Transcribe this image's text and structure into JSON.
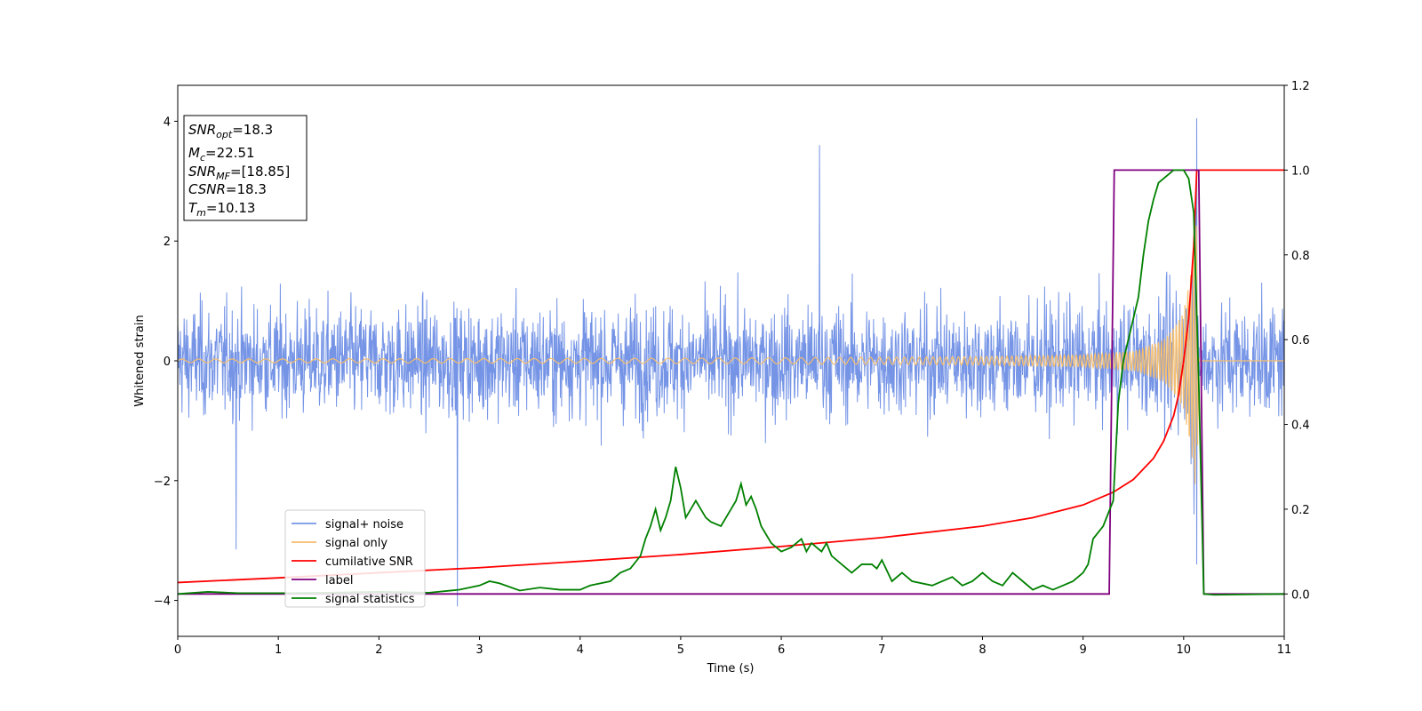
{
  "chart_data": {
    "type": "line",
    "xlabel": "Time (s)",
    "ylabel": "Whitened strain",
    "xlim": [
      0,
      11
    ],
    "ylim_left": [
      -4.6,
      4.6
    ],
    "ylim_right": [
      -0.1,
      1.2
    ],
    "x_ticks": [
      0,
      1,
      2,
      3,
      4,
      5,
      6,
      7,
      8,
      9,
      10,
      11
    ],
    "y_ticks_left": [
      -4,
      -2,
      0,
      2,
      4
    ],
    "y_ticks_right": [
      0.0,
      0.2,
      0.4,
      0.6,
      0.8,
      1.0,
      1.2
    ],
    "legend_position": "lower-left",
    "info_box": {
      "snr_opt": {
        "main": "SNR",
        "sub": "opt",
        "value": "=18.3"
      },
      "mc": {
        "main": "M",
        "sub": "c",
        "value": "=22.51"
      },
      "snr_mf": {
        "main": "SNR",
        "sub": "MF",
        "value": "=[18.85]"
      },
      "csnr": {
        "main": "CSNR",
        "sub": "",
        "value": "=18.3"
      },
      "tm": {
        "main": "T",
        "sub": "m",
        "value": "=10.13"
      }
    },
    "series": [
      {
        "name": "signal+ noise",
        "color": "#7594e6",
        "axis": "left",
        "style": "noise band",
        "envelope_typical": [
          -1.3,
          1.3
        ],
        "peak_values": [
          {
            "x": 2.78,
            "y": -4.1
          },
          {
            "x": 10.13,
            "y": 4.05
          },
          {
            "x": 10.13,
            "y": -3.4
          },
          {
            "x": 6.38,
            "y": 3.6
          },
          {
            "x": 0.58,
            "y": -3.15
          }
        ]
      },
      {
        "name": "signal only",
        "color": "#f5be6f",
        "axis": "left",
        "style": "chirp",
        "x": [
          0,
          2,
          4,
          6,
          8,
          9,
          9.5,
          9.8,
          10.0,
          10.1,
          10.13,
          10.15,
          11
        ],
        "amplitude": [
          0.03,
          0.035,
          0.04,
          0.05,
          0.07,
          0.1,
          0.16,
          0.35,
          0.8,
          1.8,
          2.5,
          0,
          0
        ]
      },
      {
        "name": "cumilative SNR",
        "color": "#ff0000",
        "axis": "right",
        "x": [
          0,
          1,
          2,
          3,
          4,
          5,
          6,
          7,
          8,
          8.5,
          9,
          9.3,
          9.5,
          9.7,
          9.8,
          9.9,
          9.95,
          10.0,
          10.05,
          10.1,
          10.13,
          10.15,
          11
        ],
        "y": [
          0.027,
          0.038,
          0.05,
          0.062,
          0.077,
          0.093,
          0.112,
          0.133,
          0.16,
          0.18,
          0.21,
          0.24,
          0.27,
          0.32,
          0.36,
          0.42,
          0.47,
          0.55,
          0.65,
          0.82,
          1.0,
          1.0,
          1.0
        ]
      },
      {
        "name": "label",
        "color": "#800080",
        "axis": "right",
        "x": [
          0,
          9.26,
          9.31,
          10.15,
          10.2,
          11
        ],
        "y": [
          0,
          0,
          1,
          1,
          0,
          0
        ]
      },
      {
        "name": "signal statistics",
        "color": "#008000",
        "axis": "right",
        "x": [
          0,
          0.3,
          0.6,
          1.0,
          1.5,
          2.0,
          2.5,
          2.8,
          3.0,
          3.1,
          3.2,
          3.4,
          3.6,
          3.8,
          4.0,
          4.1,
          4.3,
          4.4,
          4.5,
          4.6,
          4.65,
          4.7,
          4.75,
          4.8,
          4.85,
          4.9,
          4.95,
          5.0,
          5.05,
          5.1,
          5.15,
          5.2,
          5.25,
          5.3,
          5.4,
          5.5,
          5.55,
          5.6,
          5.65,
          5.7,
          5.75,
          5.8,
          5.9,
          6.0,
          6.1,
          6.2,
          6.25,
          6.3,
          6.4,
          6.45,
          6.5,
          6.6,
          6.65,
          6.7,
          6.8,
          6.9,
          6.95,
          7.0,
          7.1,
          7.2,
          7.3,
          7.5,
          7.7,
          7.8,
          7.9,
          8.0,
          8.05,
          8.1,
          8.2,
          8.3,
          8.4,
          8.5,
          8.6,
          8.7,
          8.8,
          8.9,
          9.0,
          9.05,
          9.1,
          9.2,
          9.3,
          9.35,
          9.4,
          9.45,
          9.5,
          9.55,
          9.6,
          9.65,
          9.7,
          9.75,
          9.8,
          9.85,
          9.9,
          9.95,
          10.0,
          10.05,
          10.1,
          10.15,
          10.2,
          10.3,
          11
        ],
        "y": [
          0.0,
          0.005,
          0.002,
          0.002,
          0.003,
          0.005,
          0.003,
          0.01,
          0.02,
          0.03,
          0.025,
          0.008,
          0.015,
          0.01,
          0.01,
          0.02,
          0.03,
          0.05,
          0.06,
          0.09,
          0.13,
          0.16,
          0.2,
          0.15,
          0.18,
          0.22,
          0.3,
          0.25,
          0.18,
          0.2,
          0.22,
          0.2,
          0.18,
          0.17,
          0.16,
          0.2,
          0.22,
          0.26,
          0.21,
          0.23,
          0.2,
          0.16,
          0.12,
          0.1,
          0.11,
          0.13,
          0.1,
          0.12,
          0.1,
          0.12,
          0.09,
          0.07,
          0.06,
          0.05,
          0.07,
          0.07,
          0.06,
          0.08,
          0.03,
          0.05,
          0.03,
          0.02,
          0.04,
          0.02,
          0.03,
          0.05,
          0.04,
          0.03,
          0.02,
          0.05,
          0.03,
          0.01,
          0.02,
          0.01,
          0.02,
          0.03,
          0.05,
          0.07,
          0.13,
          0.16,
          0.22,
          0.45,
          0.55,
          0.6,
          0.65,
          0.7,
          0.8,
          0.88,
          0.93,
          0.97,
          0.98,
          0.99,
          1.0,
          1.0,
          1.0,
          0.98,
          0.9,
          0.5,
          0.0,
          -0.002,
          0.0
        ]
      }
    ]
  }
}
